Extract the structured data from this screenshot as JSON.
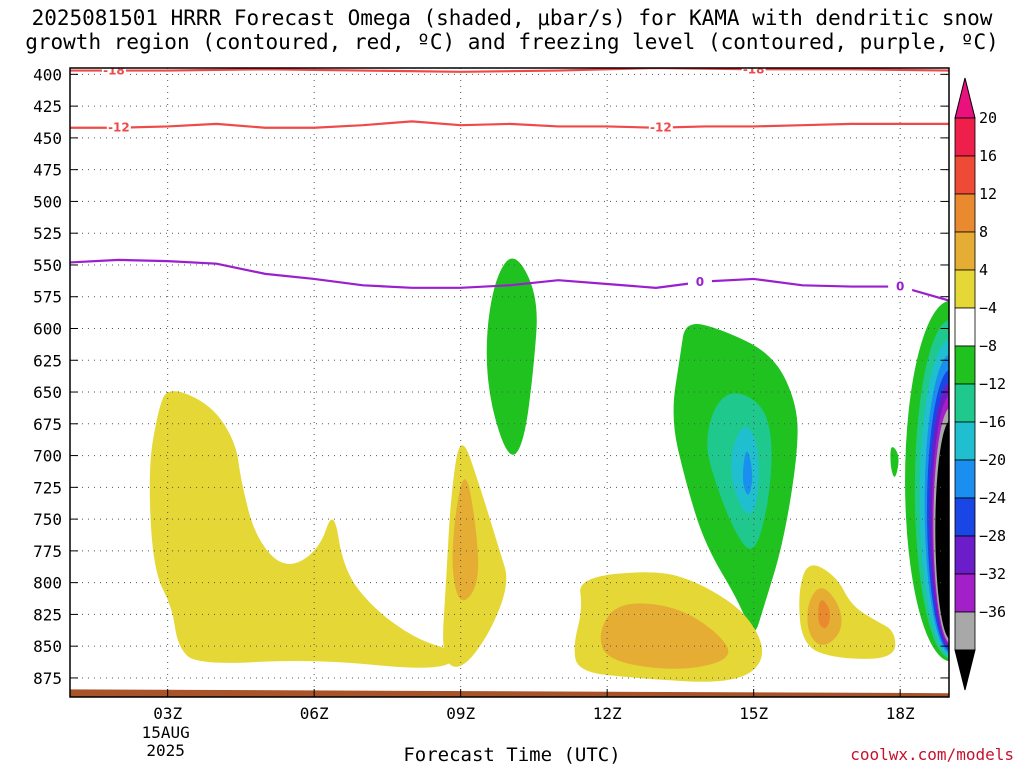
{
  "title_line1": "2025081501 HRRR Forecast Omega (shaded, μbar/s) for KAMA with dendritic snow",
  "title_line2": "growth region (contoured, red, ºC) and freezing level (contoured, purple, ºC)",
  "watermark": "coolwx.com/models",
  "chart_data": {
    "type": "heatmap",
    "xlabel": "Forecast Time (UTC)",
    "ylabel": "",
    "x_axis": {
      "range_hours": [
        1.0,
        19.0
      ],
      "ticks": [
        {
          "hour": 3,
          "label": "03Z",
          "sub": [
            "15AUG",
            "2025"
          ]
        },
        {
          "hour": 6,
          "label": "06Z"
        },
        {
          "hour": 9,
          "label": "09Z"
        },
        {
          "hour": 12,
          "label": "12Z"
        },
        {
          "hour": 15,
          "label": "15Z"
        },
        {
          "hour": 18,
          "label": "18Z"
        }
      ]
    },
    "y_axis": {
      "unit": "hPa",
      "range": [
        395,
        890
      ],
      "ticks": [
        400,
        425,
        450,
        475,
        500,
        525,
        550,
        575,
        600,
        625,
        650,
        675,
        700,
        725,
        750,
        775,
        800,
        825,
        850,
        875
      ]
    },
    "grid": true,
    "colorbar": {
      "labels": [
        "20",
        "16",
        "12",
        "8",
        "4",
        "−4",
        "−8",
        "−12",
        "−16",
        "−20",
        "−24",
        "−28",
        "−32",
        "−36"
      ],
      "colors": [
        "#ee1f4b",
        "#ef4a36",
        "#ea8a2e",
        "#e6ad34",
        "#e5d836",
        "#ffffff",
        "#1fc21f",
        "#1fc98d",
        "#1fbfcf",
        "#1a8fef",
        "#1a46e5",
        "#6a1dc9",
        "#a31fc8",
        "#a8a8a8"
      ],
      "top_arrow_color": "#e9117d",
      "bottom_arrow_color": "#000000"
    },
    "contours": [
      {
        "name": "-18",
        "color": "#ef4a4a",
        "label": "-18",
        "points": [
          [
            1.0,
            397
          ],
          [
            2.0,
            397
          ],
          [
            3.0,
            397
          ],
          [
            5.0,
            396
          ],
          [
            7.0,
            397
          ],
          [
            9.0,
            398
          ],
          [
            11.0,
            397
          ],
          [
            13.0,
            395
          ],
          [
            15.0,
            396
          ],
          [
            17.0,
            396
          ],
          [
            19.0,
            397
          ]
        ],
        "labels_at": [
          1.9,
          15.0
        ]
      },
      {
        "name": "-12",
        "color": "#ef4a4a",
        "label": "-12",
        "points": [
          [
            1.0,
            442
          ],
          [
            2.0,
            442
          ],
          [
            3.0,
            441
          ],
          [
            4.0,
            439
          ],
          [
            5.0,
            442
          ],
          [
            6.0,
            442
          ],
          [
            7.0,
            440
          ],
          [
            8.0,
            437
          ],
          [
            9.0,
            440
          ],
          [
            10.0,
            439
          ],
          [
            11.0,
            441
          ],
          [
            12.0,
            441
          ],
          [
            13.0,
            442
          ],
          [
            14.0,
            441
          ],
          [
            15.0,
            441
          ],
          [
            16.0,
            440
          ],
          [
            17.0,
            439
          ],
          [
            18.0,
            439
          ],
          [
            19.0,
            439
          ]
        ],
        "labels_at": [
          2.0,
          13.1
        ]
      },
      {
        "name": "0",
        "color": "#9a1fcf",
        "label": "0",
        "points": [
          [
            1.0,
            548
          ],
          [
            2.0,
            546
          ],
          [
            3.0,
            547
          ],
          [
            4.0,
            549
          ],
          [
            5.0,
            557
          ],
          [
            6.0,
            561
          ],
          [
            7.0,
            566
          ],
          [
            8.0,
            568
          ],
          [
            9.0,
            568
          ],
          [
            10.0,
            566
          ],
          [
            11.0,
            562
          ],
          [
            12.0,
            565
          ],
          [
            13.0,
            568
          ],
          [
            14.0,
            563
          ],
          [
            15.0,
            561
          ],
          [
            16.0,
            566
          ],
          [
            17.0,
            567
          ],
          [
            18.0,
            567
          ],
          [
            19.0,
            578
          ]
        ],
        "labels_at": [
          13.9,
          18.0
        ]
      }
    ],
    "shaded_regions": [
      {
        "value": "4 to 8",
        "color": "#e5d836",
        "points": [
          [
            3.0,
            645
          ],
          [
            3.9,
            660
          ],
          [
            4.4,
            690
          ],
          [
            4.5,
            720
          ],
          [
            4.8,
            765
          ],
          [
            5.4,
            790
          ],
          [
            6.1,
            775
          ],
          [
            6.4,
            740
          ],
          [
            6.6,
            790
          ],
          [
            7.2,
            820
          ],
          [
            8.1,
            845
          ],
          [
            9.0,
            855
          ],
          [
            8.6,
            870
          ],
          [
            6.0,
            860
          ],
          [
            3.6,
            865
          ],
          [
            3.2,
            850
          ],
          [
            3.1,
            820
          ],
          [
            2.7,
            790
          ],
          [
            2.6,
            710
          ],
          [
            2.8,
            665
          ]
        ]
      },
      {
        "value": "4 to 8",
        "color": "#e5d836",
        "points": [
          [
            9.0,
            680
          ],
          [
            9.4,
            725
          ],
          [
            9.8,
            775
          ],
          [
            10.0,
            800
          ],
          [
            9.6,
            840
          ],
          [
            9.0,
            870
          ],
          [
            8.6,
            860
          ],
          [
            8.7,
            800
          ],
          [
            8.8,
            730
          ]
        ]
      },
      {
        "value": "8 to 12",
        "color": "#e6ad34",
        "points": [
          [
            9.1,
            710
          ],
          [
            9.3,
            750
          ],
          [
            9.4,
            800
          ],
          [
            9.0,
            820
          ],
          [
            8.8,
            790
          ],
          [
            8.9,
            740
          ]
        ]
      },
      {
        "value": "-4 to -8",
        "color": "#1fc21f",
        "points": [
          [
            10.1,
            538
          ],
          [
            10.6,
            575
          ],
          [
            10.5,
            630
          ],
          [
            10.3,
            690
          ],
          [
            10.0,
            705
          ],
          [
            9.6,
            660
          ],
          [
            9.5,
            610
          ],
          [
            9.7,
            560
          ]
        ]
      },
      {
        "value": "-4 to -8",
        "color": "#1fc21f",
        "points": [
          [
            13.6,
            594
          ],
          [
            14.3,
            600
          ],
          [
            15.4,
            620
          ],
          [
            15.9,
            660
          ],
          [
            15.9,
            700
          ],
          [
            15.6,
            770
          ],
          [
            15.2,
            820
          ],
          [
            15.0,
            845
          ],
          [
            14.7,
            815
          ],
          [
            14.0,
            770
          ],
          [
            13.6,
            720
          ],
          [
            13.3,
            670
          ],
          [
            13.5,
            620
          ]
        ]
      },
      {
        "value": "-8 to -12",
        "color": "#1fc98d",
        "points": [
          [
            14.6,
            648
          ],
          [
            15.2,
            660
          ],
          [
            15.4,
            690
          ],
          [
            15.3,
            740
          ],
          [
            15.0,
            780
          ],
          [
            14.6,
            760
          ],
          [
            14.2,
            720
          ],
          [
            14.0,
            690
          ],
          [
            14.2,
            660
          ]
        ]
      },
      {
        "value": "-12 to -16",
        "color": "#1fbfcf",
        "points": [
          [
            14.8,
            672
          ],
          [
            15.1,
            690
          ],
          [
            15.1,
            735
          ],
          [
            14.9,
            750
          ],
          [
            14.6,
            730
          ],
          [
            14.5,
            700
          ]
        ]
      },
      {
        "value": "-16 to -20",
        "color": "#1a8fef",
        "points": [
          [
            14.85,
            690
          ],
          [
            15.0,
            715
          ],
          [
            14.9,
            735
          ],
          [
            14.75,
            720
          ]
        ]
      },
      {
        "value": "4 to 8",
        "color": "#e5d836",
        "points": [
          [
            11.4,
            796
          ],
          [
            13.0,
            790
          ],
          [
            13.9,
            800
          ],
          [
            14.9,
            825
          ],
          [
            15.3,
            860
          ],
          [
            14.6,
            880
          ],
          [
            12.5,
            875
          ],
          [
            11.4,
            870
          ],
          [
            11.3,
            850
          ],
          [
            11.5,
            820
          ]
        ]
      },
      {
        "value": "8 to 12",
        "color": "#e6ad34",
        "points": [
          [
            12.2,
            815
          ],
          [
            13.4,
            818
          ],
          [
            14.3,
            840
          ],
          [
            14.6,
            860
          ],
          [
            13.5,
            870
          ],
          [
            12.0,
            862
          ],
          [
            11.8,
            840
          ]
        ]
      },
      {
        "value": "4 to 8",
        "color": "#e5d836",
        "points": [
          [
            16.1,
            782
          ],
          [
            16.7,
            795
          ],
          [
            17.0,
            818
          ],
          [
            17.5,
            830
          ],
          [
            17.9,
            838
          ],
          [
            17.9,
            860
          ],
          [
            16.7,
            860
          ],
          [
            16.0,
            850
          ],
          [
            15.9,
            810
          ]
        ]
      },
      {
        "value": "8 to 12",
        "color": "#e6ad34",
        "points": [
          [
            16.4,
            800
          ],
          [
            16.8,
            820
          ],
          [
            16.8,
            840
          ],
          [
            16.4,
            852
          ],
          [
            16.1,
            840
          ],
          [
            16.1,
            815
          ]
        ]
      },
      {
        "value": "12 to 16",
        "color": "#ea8a2e",
        "points": [
          [
            16.35,
            810
          ],
          [
            16.6,
            822
          ],
          [
            16.5,
            838
          ],
          [
            16.3,
            832
          ]
        ]
      },
      {
        "value": "-4 to -8",
        "color": "#1fc21f",
        "points": [
          [
            17.8,
            690
          ],
          [
            18.0,
            700
          ],
          [
            17.9,
            720
          ],
          [
            17.8,
            710
          ]
        ]
      }
    ],
    "edge_regions": [
      {
        "value": "-4 to -8",
        "color": "#1fc21f",
        "x_left": 18.1,
        "top": 578,
        "bottom": 862
      },
      {
        "value": "-8 to -12",
        "color": "#1fc98d",
        "x_left": 18.3,
        "top": 593,
        "bottom": 860
      },
      {
        "value": "-12 to -16",
        "color": "#1fbfcf",
        "x_left": 18.4,
        "top": 608,
        "bottom": 858
      },
      {
        "value": "-16 to -20",
        "color": "#1a8fef",
        "x_left": 18.5,
        "top": 620,
        "bottom": 856
      },
      {
        "value": "-20 to -24",
        "color": "#1a46e5",
        "x_left": 18.55,
        "top": 632,
        "bottom": 854
      },
      {
        "value": "-24 to -28",
        "color": "#6a1dc9",
        "x_left": 18.6,
        "top": 642,
        "bottom": 852
      },
      {
        "value": "-28 to -32",
        "color": "#a31fc8",
        "x_left": 18.65,
        "top": 652,
        "bottom": 850
      },
      {
        "value": "-32 to -36",
        "color": "#a8a8a8",
        "x_left": 18.68,
        "top": 662,
        "bottom": 848
      },
      {
        "value": "< -36",
        "color": "#000000",
        "x_left": 18.72,
        "top": 672,
        "bottom": 845
      }
    ],
    "terrain": {
      "color": "#a8532a",
      "pressure_left": 884,
      "pressure_right": 887
    }
  }
}
